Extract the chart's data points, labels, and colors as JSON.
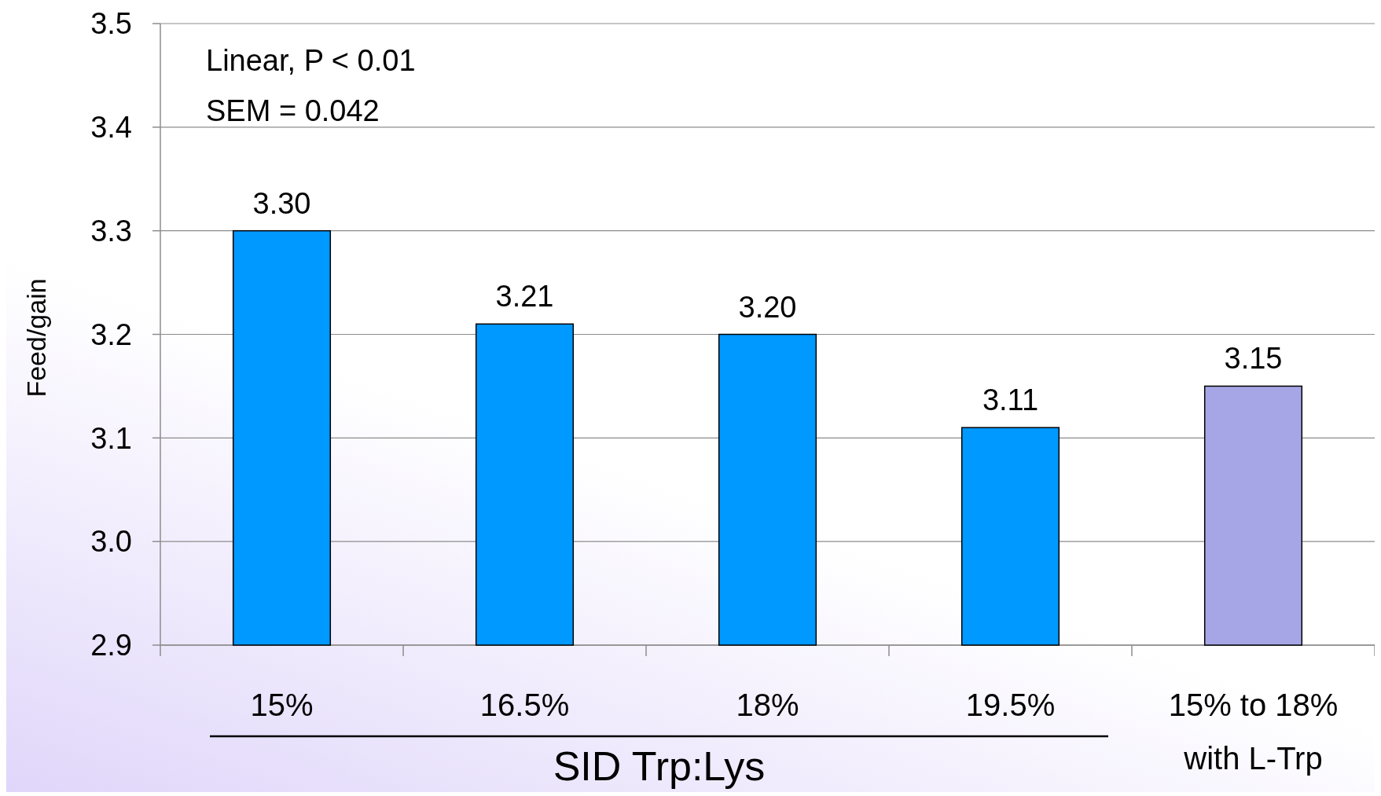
{
  "chart_data": {
    "type": "bar",
    "ylabel": "Feed/gain",
    "xlabel": "SID Trp:Lys",
    "categories": [
      "15%",
      "16.5%",
      "18%",
      "19.5%",
      "15% to 18% with L-Trp"
    ],
    "values": [
      3.3,
      3.21,
      3.2,
      3.11,
      3.15
    ],
    "colors": [
      "#0099ff",
      "#0099ff",
      "#0099ff",
      "#0099ff",
      "#a6a6e6"
    ],
    "value_labels": [
      "3.30",
      "3.21",
      "3.20",
      "3.11",
      "3.15"
    ],
    "ylim": [
      2.9,
      3.5
    ],
    "yticks": [
      "2.9",
      "3.0",
      "3.1",
      "3.2",
      "3.3",
      "3.4",
      "3.5"
    ],
    "grid": "y",
    "annotations": [
      "Linear, P < 0.01",
      "SEM = 0.042"
    ]
  }
}
